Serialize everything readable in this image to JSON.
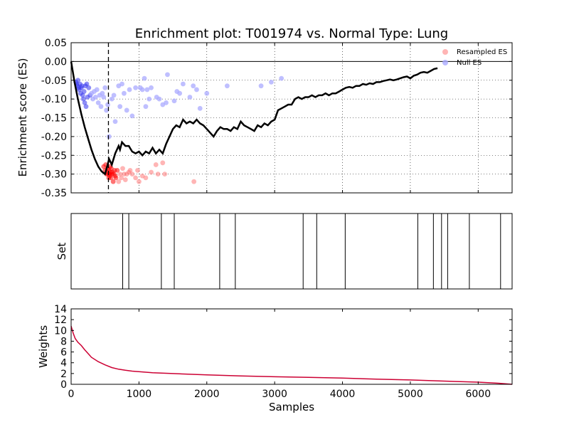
{
  "figure": {
    "title": "Enrichment plot: T001974 vs. Normal Type: Lung"
  },
  "chart_data": [
    {
      "type": "line",
      "panel": "enrichment",
      "ylabel": "Enrichment score (ES)",
      "xlim": [
        0,
        6500
      ],
      "ylim": [
        -0.35,
        0.05
      ],
      "yticks": [
        "0.05",
        "0.00",
        "-0.05",
        "-0.10",
        "-0.15",
        "-0.20",
        "-0.25",
        "-0.30",
        "-0.35"
      ],
      "ytick_values": [
        0.05,
        0.0,
        -0.05,
        -0.1,
        -0.15,
        -0.2,
        -0.25,
        -0.3,
        -0.35
      ],
      "xtick_values": [
        0,
        1000,
        2000,
        3000,
        4000,
        5000,
        6000
      ],
      "grid": true,
      "legend": {
        "placement": "top-right",
        "entries": [
          "Resampled ES",
          "Null ES"
        ]
      },
      "series": [
        {
          "name": "ES",
          "color": "#000000",
          "x": [
            0,
            50,
            100,
            150,
            200,
            250,
            300,
            350,
            400,
            450,
            500,
            530,
            560,
            600,
            650,
            700,
            720,
            750,
            800,
            850,
            900,
            950,
            1000,
            1050,
            1100,
            1150,
            1200,
            1250,
            1300,
            1350,
            1400,
            1450,
            1500,
            1550,
            1600,
            1650,
            1700,
            1750,
            1800,
            1850,
            1900,
            1950,
            2000,
            2050,
            2100,
            2150,
            2200,
            2250,
            2300,
            2350,
            2400,
            2450,
            2500,
            2550,
            2600,
            2650,
            2700,
            2750,
            2800,
            2850,
            2900,
            2950,
            3000,
            3050,
            3100,
            3150,
            3200,
            3250,
            3300,
            3350,
            3400,
            3450,
            3500,
            3550,
            3600,
            3650,
            3700,
            3750,
            3800,
            3850,
            3900,
            3950,
            4000,
            4050,
            4100,
            4150,
            4200,
            4250,
            4300,
            4350,
            4400,
            4450,
            4500,
            4550,
            4600,
            4650,
            4700,
            4750,
            4800,
            4850,
            4900,
            4950,
            5000,
            5050,
            5100,
            5150,
            5200,
            5250,
            5300,
            5350,
            5400
          ],
          "y": [
            0.0,
            -0.055,
            -0.1,
            -0.14,
            -0.175,
            -0.205,
            -0.235,
            -0.26,
            -0.28,
            -0.293,
            -0.3,
            -0.28,
            -0.26,
            -0.275,
            -0.245,
            -0.225,
            -0.235,
            -0.215,
            -0.225,
            -0.225,
            -0.24,
            -0.245,
            -0.24,
            -0.25,
            -0.24,
            -0.245,
            -0.23,
            -0.245,
            -0.235,
            -0.245,
            -0.22,
            -0.2,
            -0.18,
            -0.17,
            -0.175,
            -0.155,
            -0.165,
            -0.16,
            -0.165,
            -0.155,
            -0.165,
            -0.17,
            -0.18,
            -0.19,
            -0.2,
            -0.185,
            -0.175,
            -0.18,
            -0.18,
            -0.185,
            -0.175,
            -0.18,
            -0.16,
            -0.17,
            -0.175,
            -0.18,
            -0.185,
            -0.17,
            -0.175,
            -0.165,
            -0.17,
            -0.16,
            -0.155,
            -0.13,
            -0.125,
            -0.12,
            -0.115,
            -0.115,
            -0.1,
            -0.095,
            -0.1,
            -0.095,
            -0.095,
            -0.09,
            -0.095,
            -0.09,
            -0.09,
            -0.085,
            -0.09,
            -0.085,
            -0.085,
            -0.08,
            -0.075,
            -0.07,
            -0.068,
            -0.07,
            -0.065,
            -0.065,
            -0.06,
            -0.062,
            -0.058,
            -0.06,
            -0.055,
            -0.055,
            -0.052,
            -0.05,
            -0.048,
            -0.05,
            -0.048,
            -0.045,
            -0.042,
            -0.04,
            -0.045,
            -0.038,
            -0.035,
            -0.03,
            -0.028,
            -0.03,
            -0.025,
            -0.02,
            -0.018
          ]
        }
      ],
      "null_es": {
        "color": "#aaaaff",
        "points": [
          [
            70,
            -0.055
          ],
          [
            80,
            -0.06
          ],
          [
            90,
            -0.065
          ],
          [
            100,
            -0.05
          ],
          [
            110,
            -0.07
          ],
          [
            120,
            -0.075
          ],
          [
            130,
            -0.06
          ],
          [
            140,
            -0.085
          ],
          [
            150,
            -0.07
          ],
          [
            160,
            -0.065
          ],
          [
            170,
            -0.09
          ],
          [
            180,
            -0.1
          ],
          [
            190,
            -0.08
          ],
          [
            200,
            -0.11
          ],
          [
            210,
            -0.065
          ],
          [
            220,
            -0.12
          ],
          [
            230,
            -0.06
          ],
          [
            240,
            -0.095
          ],
          [
            260,
            -0.07
          ],
          [
            280,
            -0.09
          ],
          [
            300,
            -0.085
          ],
          [
            320,
            -0.1
          ],
          [
            340,
            -0.08
          ],
          [
            360,
            -0.095
          ],
          [
            380,
            -0.075
          ],
          [
            400,
            -0.11
          ],
          [
            420,
            -0.09
          ],
          [
            440,
            -0.12
          ],
          [
            460,
            -0.085
          ],
          [
            480,
            -0.095
          ],
          [
            500,
            -0.07
          ],
          [
            520,
            -0.13
          ],
          [
            540,
            -0.115
          ],
          [
            560,
            -0.2
          ],
          [
            600,
            -0.1
          ],
          [
            630,
            -0.09
          ],
          [
            650,
            -0.16
          ],
          [
            700,
            -0.065
          ],
          [
            720,
            -0.12
          ],
          [
            750,
            -0.06
          ],
          [
            780,
            -0.085
          ],
          [
            820,
            -0.13
          ],
          [
            860,
            -0.075
          ],
          [
            900,
            -0.145
          ],
          [
            950,
            -0.07
          ],
          [
            1020,
            -0.07
          ],
          [
            1050,
            -0.075
          ],
          [
            1080,
            -0.045
          ],
          [
            1100,
            -0.12
          ],
          [
            1120,
            -0.075
          ],
          [
            1150,
            -0.1
          ],
          [
            1180,
            -0.07
          ],
          [
            1260,
            -0.095
          ],
          [
            1300,
            -0.1
          ],
          [
            1350,
            -0.115
          ],
          [
            1400,
            -0.11
          ],
          [
            1420,
            -0.035
          ],
          [
            1520,
            -0.105
          ],
          [
            1560,
            -0.08
          ],
          [
            1600,
            -0.085
          ],
          [
            1650,
            -0.06
          ],
          [
            1750,
            -0.095
          ],
          [
            1800,
            -0.065
          ],
          [
            1850,
            -0.075
          ],
          [
            1900,
            -0.125
          ],
          [
            2000,
            -0.085
          ],
          [
            2300,
            -0.065
          ],
          [
            2800,
            -0.065
          ],
          [
            2950,
            -0.055
          ],
          [
            3100,
            -0.045
          ]
        ]
      },
      "resampled_es": {
        "color": "#ff6b6b",
        "points": [
          [
            480,
            -0.28
          ],
          [
            500,
            -0.29
          ],
          [
            510,
            -0.275
          ],
          [
            520,
            -0.3
          ],
          [
            530,
            -0.295
          ],
          [
            540,
            -0.285
          ],
          [
            550,
            -0.3
          ],
          [
            555,
            -0.31
          ],
          [
            560,
            -0.29
          ],
          [
            565,
            -0.3
          ],
          [
            570,
            -0.305
          ],
          [
            575,
            -0.28
          ],
          [
            580,
            -0.295
          ],
          [
            585,
            -0.31
          ],
          [
            590,
            -0.285
          ],
          [
            600,
            -0.3
          ],
          [
            610,
            -0.295
          ],
          [
            620,
            -0.32
          ],
          [
            630,
            -0.3
          ],
          [
            640,
            -0.29
          ],
          [
            650,
            -0.305
          ],
          [
            660,
            -0.31
          ],
          [
            680,
            -0.29
          ],
          [
            700,
            -0.32
          ],
          [
            720,
            -0.3
          ],
          [
            740,
            -0.31
          ],
          [
            760,
            -0.285
          ],
          [
            780,
            -0.3
          ],
          [
            800,
            -0.315
          ],
          [
            820,
            -0.3
          ],
          [
            850,
            -0.295
          ],
          [
            870,
            -0.29
          ],
          [
            900,
            -0.3
          ],
          [
            950,
            -0.31
          ],
          [
            980,
            -0.29
          ],
          [
            1000,
            -0.32
          ],
          [
            1050,
            -0.305
          ],
          [
            1100,
            -0.31
          ],
          [
            1180,
            -0.295
          ],
          [
            1250,
            -0.275
          ],
          [
            1280,
            -0.3
          ],
          [
            1350,
            -0.27
          ],
          [
            1380,
            -0.3
          ],
          [
            1810,
            -0.32
          ]
        ]
      },
      "leading_edge_x": 550
    },
    {
      "type": "barcode",
      "panel": "set",
      "ylabel": "Set",
      "xlim": [
        0,
        6500
      ],
      "hits": [
        760,
        850,
        1330,
        1520,
        2190,
        2420,
        3420,
        3620,
        4040,
        5110,
        5340,
        5460,
        5550,
        5870,
        6330
      ]
    },
    {
      "type": "line",
      "panel": "weights",
      "xlabel": "Samples",
      "ylabel": "Weights",
      "xlim": [
        0,
        6500
      ],
      "ylim": [
        0,
        14
      ],
      "yticks": [
        "14",
        "12",
        "10",
        "8",
        "6",
        "4",
        "2",
        "0"
      ],
      "ytick_values": [
        14,
        12,
        10,
        8,
        6,
        4,
        2,
        0
      ],
      "xticks": [
        "0",
        "1000",
        "2000",
        "3000",
        "4000",
        "5000",
        "6000"
      ],
      "xtick_values": [
        0,
        1000,
        2000,
        3000,
        4000,
        5000,
        6000
      ],
      "series": [
        {
          "name": "Weights",
          "color": "#cc0033",
          "x": [
            0,
            30,
            60,
            100,
            150,
            200,
            300,
            400,
            500,
            600,
            700,
            800,
            900,
            1000,
            1200,
            1500,
            2000,
            2500,
            3000,
            3500,
            4000,
            4500,
            5000,
            5500,
            6000,
            6300,
            6500
          ],
          "y": [
            10.8,
            9.5,
            8.5,
            7.8,
            7.2,
            6.4,
            5.0,
            4.2,
            3.6,
            3.1,
            2.8,
            2.6,
            2.45,
            2.35,
            2.15,
            2.0,
            1.75,
            1.55,
            1.4,
            1.3,
            1.15,
            0.95,
            0.8,
            0.6,
            0.4,
            0.2,
            0.0
          ]
        }
      ]
    }
  ]
}
